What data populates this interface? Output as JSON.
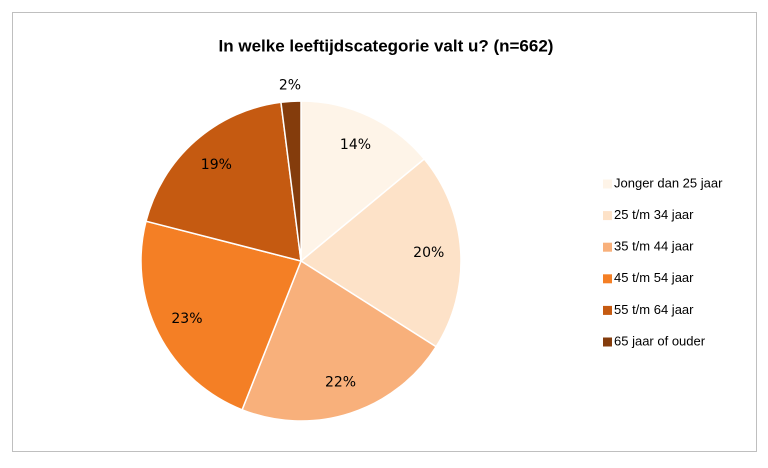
{
  "chart_data": {
    "type": "pie",
    "title": "In welke leeftijdscategorie valt u? (n=662)",
    "categories": [
      "Jonger dan 25 jaar",
      "25 t/m 34 jaar",
      "35 t/m 44 jaar",
      "45 t/m 54 jaar",
      "55 t/m 64 jaar",
      "65 jaar of ouder"
    ],
    "values": [
      14,
      20,
      22,
      23,
      19,
      2
    ],
    "value_labels": [
      "14%",
      "20%",
      "22%",
      "23%",
      "19%",
      "2%"
    ],
    "colors": [
      "#fef4e8",
      "#fde2c8",
      "#f8b07b",
      "#f47f25",
      "#c55a11",
      "#843c0c"
    ],
    "legend": "right"
  }
}
